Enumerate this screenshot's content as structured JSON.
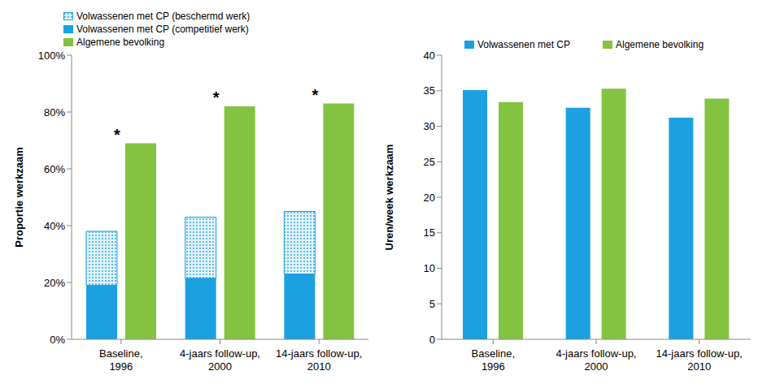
{
  "chart_data": [
    {
      "type": "bar",
      "categories": [
        "Baseline, 1996",
        "4-jaars follow-up, 2000",
        "14-jaars follow-up, 2010"
      ],
      "series": [
        {
          "name": "Volwassenen met CP (beschermd werk)",
          "color": "#1ba1e2",
          "values": [
            19,
            21.5,
            22
          ],
          "stacked": true,
          "marker": "dots"
        },
        {
          "name": "Volwassenen met CP (competitief werk)",
          "color": "#1ba1e2",
          "values": [
            19,
            21.5,
            23
          ],
          "stacked": true
        },
        {
          "name": "Algemene bevolking",
          "color": "#84c341",
          "values": [
            69,
            82,
            83
          ]
        }
      ],
      "ylabel": "Proportie werkzaam",
      "ylim": [
        0,
        100
      ],
      "yticks": [
        {
          "value": 0,
          "label": "0%"
        },
        {
          "value": 20,
          "label": "20%"
        },
        {
          "value": 40,
          "label": "40%"
        },
        {
          "value": 60,
          "label": "60%"
        },
        {
          "value": 80,
          "label": "80%"
        },
        {
          "value": 100,
          "label": "100%"
        }
      ],
      "legend": "top-left",
      "grid": false,
      "annotations": [
        {
          "text": "*",
          "category": "Baseline, 1996",
          "series": "Algemene bevolking"
        },
        {
          "text": "*",
          "category": "4-jaars follow-up, 2000",
          "series": "Algemene bevolking"
        },
        {
          "text": "*",
          "category": "14-jaars follow-up, 2010",
          "series": "Algemene bevolking"
        }
      ]
    },
    {
      "type": "bar",
      "categories": [
        "Baseline, 1996",
        "4-jaars follow-up, 2000",
        "14-jaars follow-up, 2010"
      ],
      "series": [
        {
          "name": "Volwassenen met CP",
          "color": "#1ba1e2",
          "values": [
            35.1,
            32.6,
            31.2
          ]
        },
        {
          "name": "Algemene bevolking",
          "color": "#84c341",
          "values": [
            33.4,
            35.3,
            33.9
          ]
        }
      ],
      "ylabel": "Uren/week werkzaam",
      "ylim": [
        0,
        40
      ],
      "yticks": [
        0,
        5,
        10,
        15,
        20,
        25,
        30,
        35,
        40
      ],
      "legend": "top",
      "grid": false
    }
  ]
}
